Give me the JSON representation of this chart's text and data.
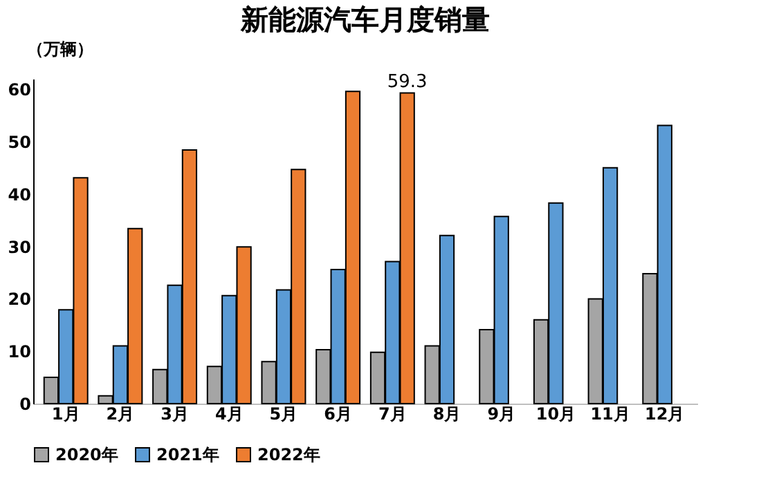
{
  "chart_data": {
    "type": "bar",
    "title": "新能源汽车月度销量",
    "ylabel": "（万辆）",
    "categories": [
      "1月",
      "2月",
      "3月",
      "4月",
      "5月",
      "6月",
      "7月",
      "8月",
      "9月",
      "10月",
      "11月",
      "12月"
    ],
    "series": [
      {
        "name": "2020年",
        "color": "#a5a5a5",
        "values": [
          5.0,
          1.5,
          6.5,
          7.1,
          8.0,
          10.3,
          9.8,
          11.0,
          14.1,
          16.0,
          20.0,
          24.8
        ]
      },
      {
        "name": "2021年",
        "color": "#5b9bd5",
        "values": [
          17.9,
          11.0,
          22.6,
          20.6,
          21.7,
          25.6,
          27.1,
          32.1,
          35.7,
          38.3,
          45.0,
          53.1
        ]
      },
      {
        "name": "2022年",
        "color": "#ed7d31",
        "values": [
          43.1,
          33.4,
          48.4,
          29.9,
          44.7,
          59.6,
          59.3,
          null,
          null,
          null,
          null,
          null
        ],
        "value_labels": [
          null,
          null,
          null,
          null,
          null,
          null,
          "59.3",
          null,
          null,
          null,
          null,
          null
        ]
      }
    ],
    "ylim": [
      0,
      62
    ],
    "yticks": [
      0,
      10,
      20,
      30,
      40,
      50,
      60
    ],
    "grid": false,
    "legend": "bottom"
  }
}
